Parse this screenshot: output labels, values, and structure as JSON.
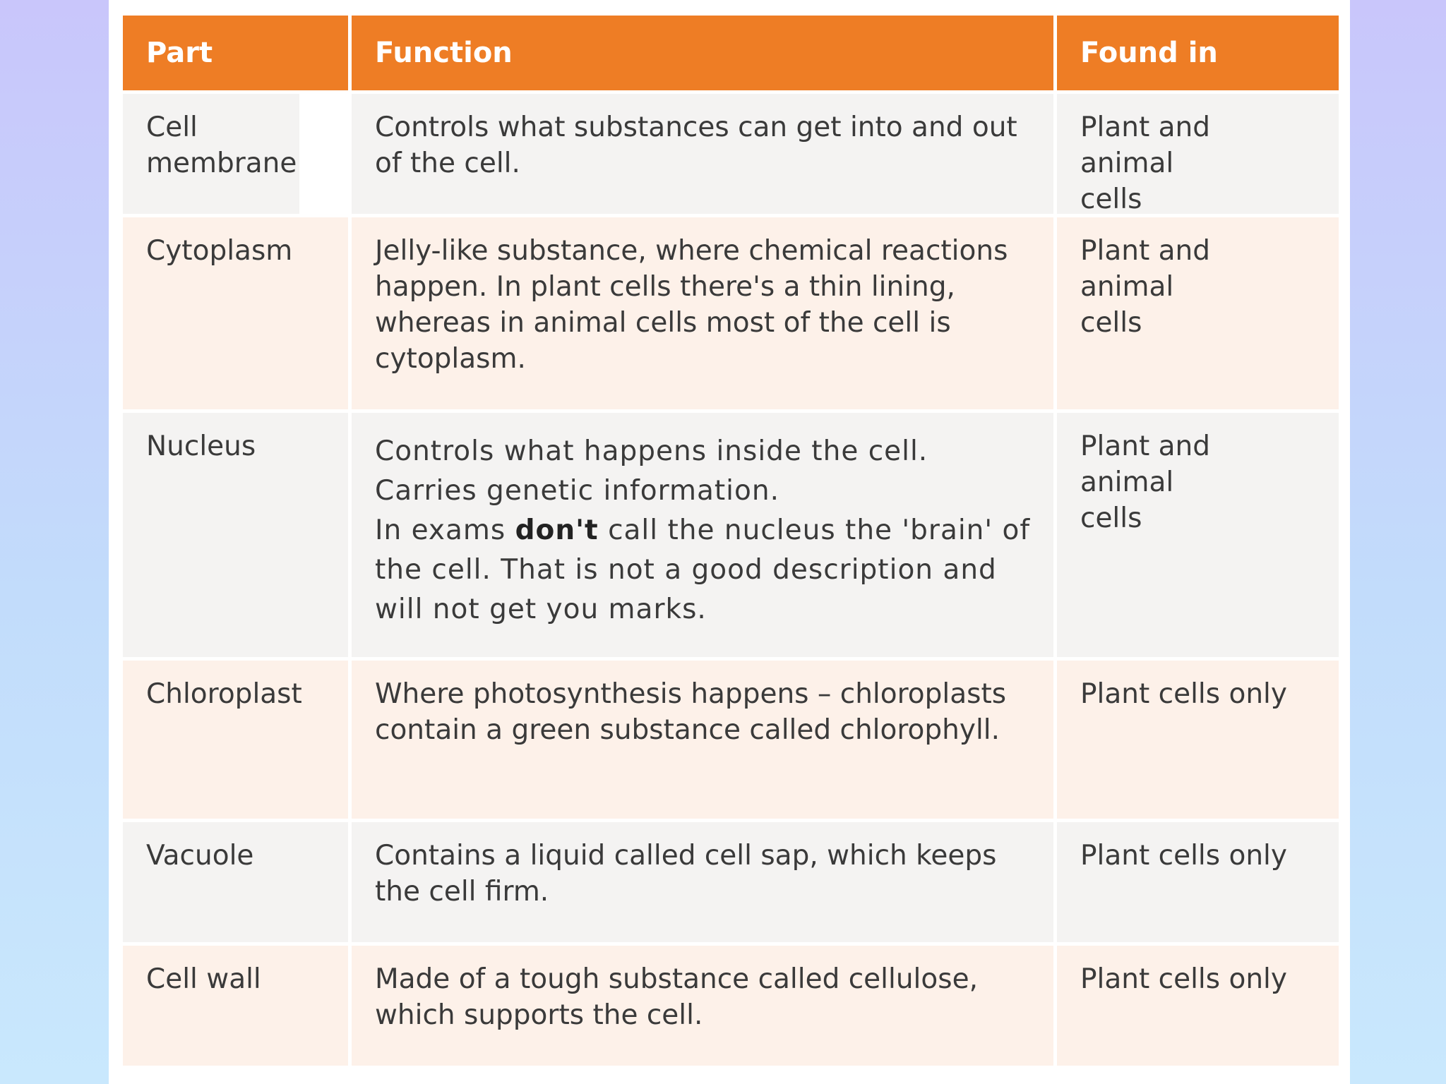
{
  "table": {
    "headers": [
      "Part",
      "Function",
      "Found in"
    ],
    "rows": [
      {
        "part": "Cell membrane",
        "function": "Controls what substances can get into and out of the cell.",
        "found_in": "Plant and animal cells"
      },
      {
        "part": "Cytoplasm",
        "function": "Jelly-like substance, where chemical reactions happen. In plant cells there's a thin lining, whereas in animal cells most of the cell is cytoplasm.",
        "found_in": "Plant and animal cells"
      },
      {
        "part": "Nucleus",
        "function_parts": {
          "line1": "Controls what happens inside the cell.",
          "line2": "Carries genetic information.",
          "pre_bold": "In exams ",
          "bold": "don't",
          "post_bold": " call the nucleus the 'brain' of the cell. That is not a good description and will not get you marks."
        },
        "found_in": "Plant and animal cells"
      },
      {
        "part": "Chloroplast",
        "function": "Where photosynthesis happens – chloroplasts contain a green substance called chlorophyll.",
        "found_in": "Plant cells only"
      },
      {
        "part": "Vacuole",
        "function": "Contains a liquid called cell sap, which keeps the cell firm.",
        "found_in": "Plant cells only"
      },
      {
        "part": "Cell wall",
        "function": "Made of a tough substance called cellulose, which supports the cell.",
        "found_in": "Plant cells only"
      }
    ]
  },
  "colors": {
    "header_bg": "#ee7d25",
    "header_text": "#ffffff",
    "row_light": "#f4f3f2",
    "row_peach": "#fdf1e9",
    "body_text": "#3a3a3a"
  }
}
